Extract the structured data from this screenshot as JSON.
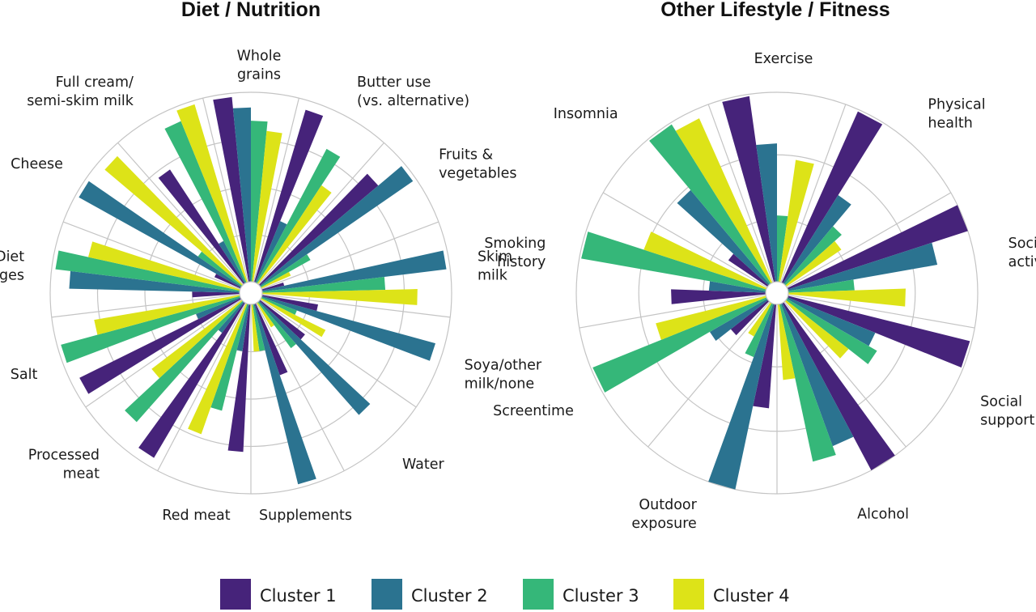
{
  "legend": [
    {
      "name": "Cluster 1",
      "color": "#46237a"
    },
    {
      "name": "Cluster 2",
      "color": "#2b7390"
    },
    {
      "name": "Cluster 3",
      "color": "#35b779"
    },
    {
      "name": "Cluster 4",
      "color": "#dde318"
    }
  ],
  "chart_data": [
    {
      "type": "polar-bar",
      "title": "Diet / Nutrition",
      "grid": true,
      "rmax": 1.0,
      "rings": [
        0.25,
        0.5,
        0.75,
        1.0
      ],
      "categories": [
        {
          "label": [
            "Whole",
            "grains"
          ],
          "values": [
            0.98,
            0.92,
            0.85,
            0.8
          ]
        },
        {
          "label": [
            "Butter use",
            "(vs. alternative)"
          ],
          "values": [
            0.95,
            0.35,
            0.8,
            0.62
          ]
        },
        {
          "label": [
            "Fruits &",
            "vegetables"
          ],
          "values": [
            0.82,
            0.98,
            0.3,
            0.17
          ]
        },
        {
          "label": [
            "Skim",
            "milk"
          ],
          "values": [
            0.12,
            0.98,
            0.65,
            0.82
          ]
        },
        {
          "label": [
            "Soya/other",
            "milk/none"
          ],
          "values": [
            0.3,
            0.95,
            0.2,
            0.38
          ]
        },
        {
          "label": [
            "Water"
          ],
          "values": [
            0.3,
            0.8,
            0.3,
            0.15
          ]
        },
        {
          "label": [
            "Supplements"
          ],
          "values": [
            0.4,
            0.98,
            0.25,
            0.25
          ]
        },
        {
          "label": [
            "Red meat"
          ],
          "values": [
            0.78,
            0.25,
            0.58,
            0.73
          ]
        },
        {
          "label": [
            "Processed",
            "meat"
          ],
          "values": [
            0.95,
            0.2,
            0.85,
            0.6
          ]
        },
        {
          "label": [
            "Salt"
          ],
          "values": [
            0.95,
            0.25,
            0.98,
            0.78
          ]
        },
        {
          "label": [
            "Diet",
            "changes"
          ],
          "values": [
            0.25,
            0.9,
            0.98,
            0.82
          ]
        },
        {
          "label": [
            "Cheese"
          ],
          "values": [
            0.15,
            0.98,
            0.28,
            0.95
          ]
        },
        {
          "label": [
            "Full cream/",
            "semi-skim milk"
          ],
          "values": [
            0.72,
            0.25,
            0.92,
            0.98
          ]
        }
      ]
    },
    {
      "type": "polar-bar",
      "title": "Other Lifestyle / Fitness",
      "grid": true,
      "rmax": 1.0,
      "rings": [
        0.33,
        0.67,
        1.0
      ],
      "categories": [
        {
          "label": [
            "Exercise"
          ],
          "values": [
            0.99,
            0.73,
            0.35,
            0.65
          ]
        },
        {
          "label": [
            "Physical",
            "health"
          ],
          "values": [
            0.99,
            0.55,
            0.4,
            0.35
          ]
        },
        {
          "label": [
            "Social",
            "activities"
          ],
          "values": [
            1.0,
            0.8,
            0.35,
            0.62
          ]
        },
        {
          "label": [
            "Social",
            "support"
          ],
          "values": [
            0.99,
            0.5,
            0.55,
            0.42
          ]
        },
        {
          "label": [
            "Alcohol"
          ],
          "values": [
            1.0,
            0.8,
            0.85,
            0.4
          ]
        },
        {
          "label": [
            "Outdoor",
            "exposure"
          ],
          "values": [
            0.55,
            1.0,
            0.3,
            0.2
          ]
        },
        {
          "label": [
            "Screentime"
          ],
          "values": [
            0.25,
            0.35,
            0.99,
            0.6
          ]
        },
        {
          "label": [
            "Smoking",
            "history"
          ],
          "values": [
            0.5,
            0.3,
            0.99,
            0.68
          ]
        },
        {
          "label": [
            "Insomnia"
          ],
          "values": [
            0.25,
            0.65,
            0.99,
            0.95
          ]
        }
      ]
    }
  ]
}
